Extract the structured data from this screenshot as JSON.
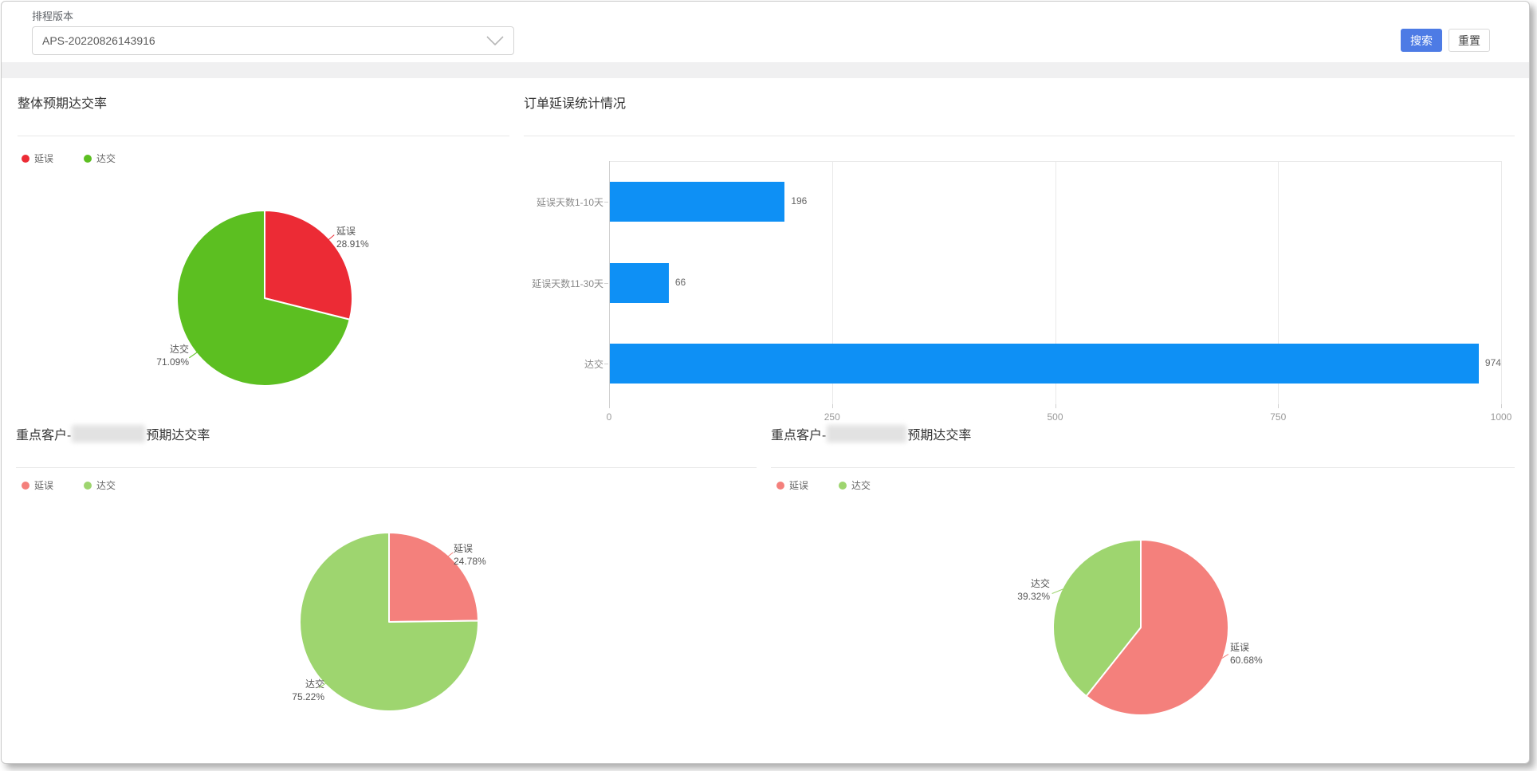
{
  "filter_bar": {
    "label": "排程版本",
    "select_value": "APS-20220826143916",
    "search_label": "搜索",
    "reset_label": "重置"
  },
  "colors": {
    "primary_button": "#4d7be5",
    "delay_red": "#ec2b35",
    "deliver_green": "#5cbf21",
    "delay_salmon": "#f4807c",
    "deliver_light_green": "#9ed56f",
    "bar_blue": "#0e90f5"
  },
  "chart_data": [
    {
      "type": "pie",
      "title": "整体预期达交率",
      "legend": [
        "延误",
        "达交"
      ],
      "legend_position": "top-left",
      "slices": [
        {
          "label": "延误",
          "pct": 28.91,
          "pct_text": "28.91%",
          "color": "#ec2b35"
        },
        {
          "label": "达交",
          "pct": 71.09,
          "pct_text": "71.09%",
          "color": "#5cbf21"
        }
      ]
    },
    {
      "type": "bar",
      "orientation": "horizontal",
      "title": "订单延误统计情况",
      "categories": [
        "延误天数1-10天",
        "延误天数11-30天",
        "达交"
      ],
      "values": [
        196,
        66,
        974
      ],
      "xlim": [
        0,
        1000
      ],
      "xticks": [
        0,
        250,
        500,
        750,
        1000
      ],
      "bar_color": "#0e90f5",
      "grid": true,
      "value_labels": true
    },
    {
      "type": "pie",
      "title_prefix": "重点客户-",
      "title_suffix": "预期达交率",
      "redacted_customer": true,
      "legend": [
        "延误",
        "达交"
      ],
      "legend_position": "top-left",
      "slices": [
        {
          "label": "延误",
          "pct": 24.78,
          "pct_text": "24.78%",
          "color": "#f4807c"
        },
        {
          "label": "达交",
          "pct": 75.22,
          "pct_text": "75.22%",
          "color": "#9ed56f"
        }
      ]
    },
    {
      "type": "pie",
      "title_prefix": "重点客户-",
      "title_suffix": "预期达交率",
      "redacted_customer": true,
      "legend": [
        "延误",
        "达交"
      ],
      "legend_position": "top-left",
      "slices": [
        {
          "label": "延误",
          "pct": 60.68,
          "pct_text": "60.68%",
          "color": "#f4807c"
        },
        {
          "label": "达交",
          "pct": 39.32,
          "pct_text": "39.32%",
          "color": "#9ed56f"
        }
      ]
    }
  ]
}
